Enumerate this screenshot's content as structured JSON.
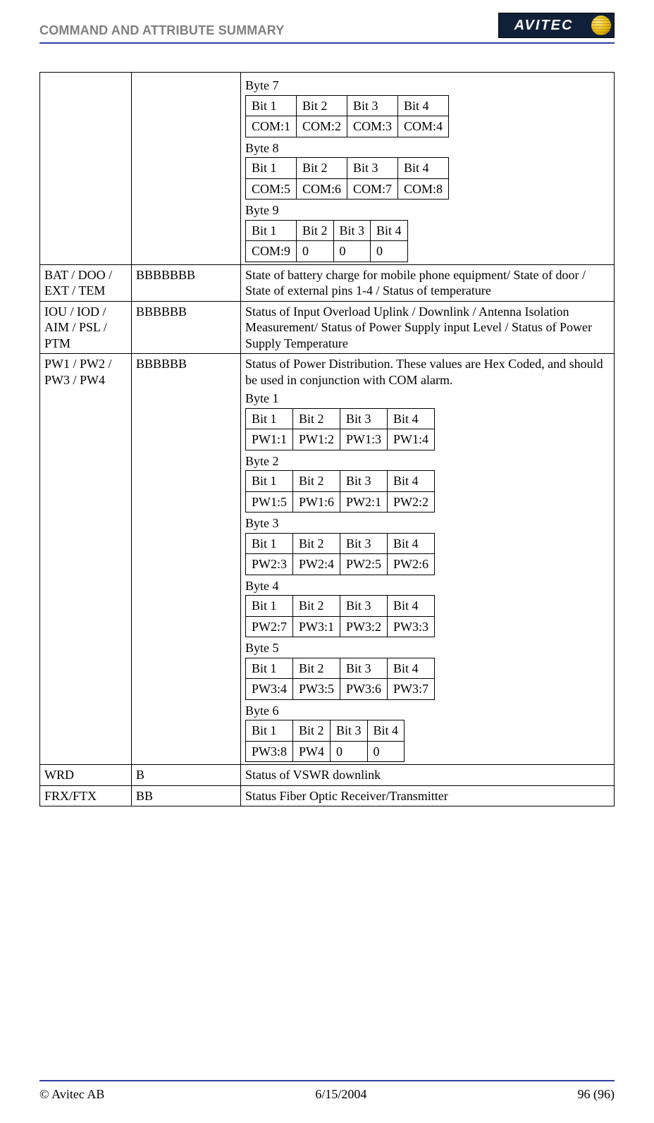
{
  "header": {
    "title": "COMMAND AND ATTRIBUTE SUMMARY",
    "logo_text": "AVITEC"
  },
  "footer": {
    "left": "© Avitec AB",
    "center": "6/15/2004",
    "right": "96 (96)"
  },
  "rows": [
    {
      "col1": "",
      "col2": "",
      "bytes": [
        {
          "label": "Byte 7",
          "header": [
            "Bit 1",
            "Bit 2",
            "Bit 3",
            "Bit 4"
          ],
          "values": [
            "COM:1",
            "COM:2",
            "COM:3",
            "COM:4"
          ]
        },
        {
          "label": "Byte 8",
          "header": [
            "Bit 1",
            "Bit 2",
            "Bit 3",
            "Bit 4"
          ],
          "values": [
            "COM:5",
            "COM:6",
            "COM:7",
            "COM:8"
          ]
        },
        {
          "label": "Byte 9",
          "header": [
            "Bit 1",
            "Bit 2",
            "Bit 3",
            "Bit 4"
          ],
          "values": [
            "COM:9",
            "0",
            "0",
            "0"
          ]
        }
      ]
    },
    {
      "col1": "BAT / DOO / EXT / TEM",
      "col2": "BBBBBBB",
      "desc": "State of battery charge for mobile phone equipment/ State of door / State of external pins 1-4 / Status of temperature"
    },
    {
      "col1": "IOU / IOD / AIM / PSL / PTM",
      "col2": "BBBBBB",
      "desc": "Status of Input Overload Uplink / Downlink / Antenna Isolation Measurement/ Status of  Power Supply input Level / Status of Power Supply Temperature"
    },
    {
      "col1": "PW1 / PW2 / PW3 / PW4",
      "col2": "BBBBBB",
      "desc": "Status of Power Distribution. These values are Hex Coded, and should be used in conjunction with COM alarm.",
      "bytes": [
        {
          "label": "Byte 1",
          "header": [
            "Bit 1",
            "Bit 2",
            "Bit 3",
            "Bit 4"
          ],
          "values": [
            "PW1:1",
            "PW1:2",
            "PW1:3",
            "PW1:4"
          ]
        },
        {
          "label": "Byte 2",
          "header": [
            "Bit 1",
            "Bit 2",
            "Bit 3",
            "Bit 4"
          ],
          "values": [
            "PW1:5",
            "PW1:6",
            "PW2:1",
            "PW2:2"
          ]
        },
        {
          "label": "Byte 3",
          "header": [
            "Bit 1",
            "Bit 2",
            "Bit 3",
            "Bit 4"
          ],
          "values": [
            "PW2:3",
            "PW2:4",
            "PW2:5",
            "PW2:6"
          ]
        },
        {
          "label": "Byte 4",
          "header": [
            "Bit 1",
            "Bit 2",
            "Bit 3",
            "Bit 4"
          ],
          "values": [
            "PW2:7",
            "PW3:1",
            "PW3:2",
            "PW3:3"
          ]
        },
        {
          "label": "Byte 5",
          "header": [
            "Bit 1",
            "Bit 2",
            "Bit 3",
            "Bit 4"
          ],
          "values": [
            "PW3:4",
            "PW3:5",
            "PW3:6",
            "PW3:7"
          ]
        },
        {
          "label": "Byte 6",
          "header": [
            "Bit 1",
            "Bit 2",
            "Bit 3",
            "Bit 4"
          ],
          "values": [
            "PW3:8",
            "PW4",
            "0",
            "0"
          ]
        }
      ]
    },
    {
      "col1": "WRD",
      "col2": "B",
      "desc": "Status of VSWR downlink"
    },
    {
      "col1": "FRX/FTX",
      "col2": "BB",
      "desc": "Status Fiber Optic Receiver/Transmitter"
    }
  ]
}
